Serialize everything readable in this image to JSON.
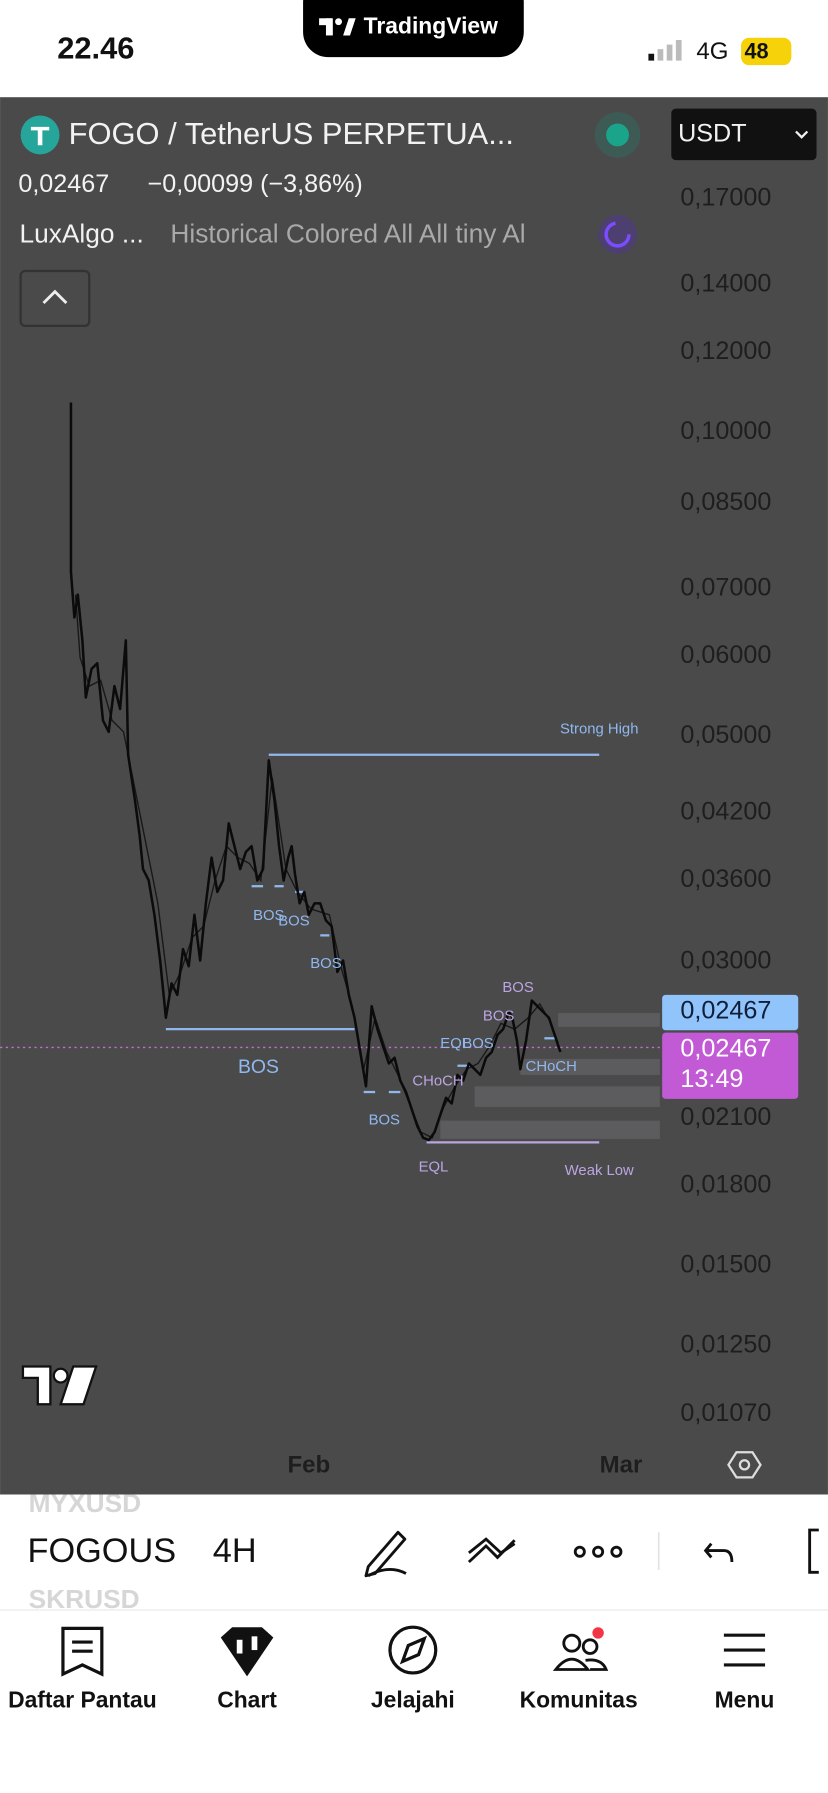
{
  "status_bar": {
    "time": "22.46",
    "network": "4G",
    "battery": "48"
  },
  "app_logo": "TradingView",
  "header": {
    "symbol": "FOGO / TetherUS PERPETUA...",
    "currency": "USDT",
    "price": "0,02467",
    "change": "−0,00099 (−3,86%)",
    "indicator_name": "LuxAlgo ...",
    "indicator_settings": "Historical Colored All All tiny Al"
  },
  "chart": {
    "price_axis": [
      "0,17000",
      "0,14000",
      "0,12000",
      "0,10000",
      "0,08500",
      "0,07000",
      "0,06000",
      "0,05000",
      "0,04200",
      "0,03600",
      "0,03000",
      "0,02100",
      "0,01800",
      "0,01500",
      "0,01250",
      "0,01070"
    ],
    "time_axis": [
      "Feb",
      "Mar"
    ],
    "last_price_label": "0,02467",
    "mark_price_label": "0,02467",
    "countdown": "13:49",
    "annotations": [
      "Strong High",
      "BOS",
      "BOS",
      "BOS",
      "BOS",
      "BOS",
      "CHoCH",
      "EQL",
      "BOS",
      "BOS",
      "BOS",
      "CHoCH",
      "EQL",
      "Weak Low"
    ]
  },
  "toolbar": {
    "symbol_above": "MYXUSD",
    "symbol": "FOGOUS",
    "symbol_below": "SKRUSD",
    "interval": "4H"
  },
  "tab_bar": [
    "Daftar Pantau",
    "Chart",
    "Jelajahi",
    "Komunitas",
    "Menu"
  ]
}
